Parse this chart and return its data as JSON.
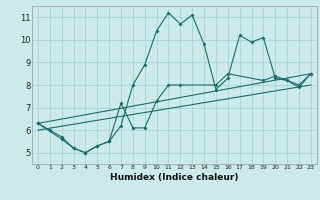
{
  "xlabel": "Humidex (Indice chaleur)",
  "xlim": [
    -0.5,
    23.5
  ],
  "ylim": [
    4.5,
    11.5
  ],
  "yticks": [
    5,
    6,
    7,
    8,
    9,
    10,
    11
  ],
  "xticks": [
    0,
    1,
    2,
    3,
    4,
    5,
    6,
    7,
    8,
    9,
    10,
    11,
    12,
    13,
    14,
    15,
    16,
    17,
    18,
    19,
    20,
    21,
    22,
    23
  ],
  "bg_color": "#cceaea",
  "grid_color": "#aad4d4",
  "line_color": "#1a6b6b",
  "line1_x": [
    0,
    1,
    2,
    3,
    4,
    5,
    6,
    7,
    8,
    9,
    10,
    11,
    12,
    13,
    14,
    15,
    16,
    17,
    18,
    19,
    20,
    21,
    22,
    23
  ],
  "line1_y": [
    6.3,
    6.0,
    5.7,
    5.2,
    5.0,
    5.3,
    5.5,
    6.2,
    8.0,
    8.9,
    10.4,
    11.2,
    10.7,
    11.1,
    9.8,
    7.8,
    8.3,
    10.2,
    9.9,
    10.1,
    8.3,
    8.2,
    7.9,
    8.5
  ],
  "line2_x": [
    0,
    2,
    3,
    4,
    5,
    6,
    7,
    8,
    9,
    10,
    11,
    12,
    15,
    16,
    19,
    20,
    21,
    22,
    23
  ],
  "line2_y": [
    6.3,
    5.6,
    5.2,
    5.0,
    5.3,
    5.5,
    7.2,
    6.1,
    6.1,
    7.3,
    8.0,
    8.0,
    8.0,
    8.5,
    8.2,
    8.4,
    8.2,
    8.0,
    8.5
  ],
  "line3_x": [
    0,
    23
  ],
  "line3_y": [
    6.3,
    8.5
  ],
  "line4_x": [
    0,
    23
  ],
  "line4_y": [
    6.0,
    8.0
  ]
}
